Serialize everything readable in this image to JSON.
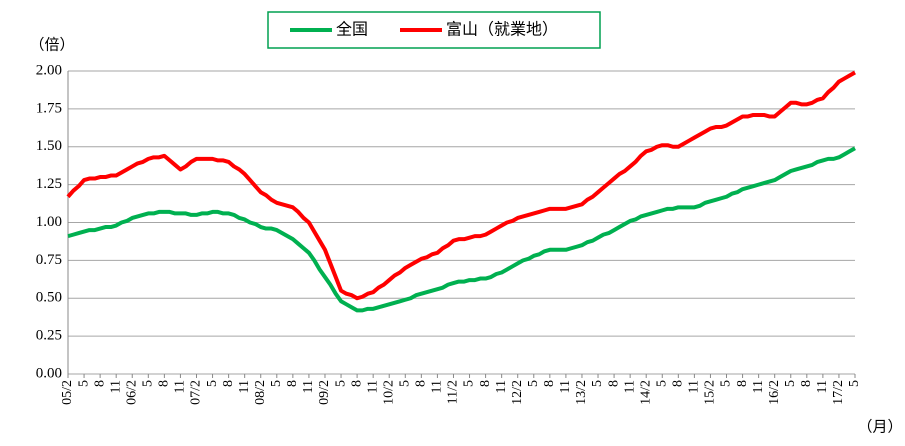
{
  "chart_data": {
    "type": "line",
    "y_unit": "（倍）",
    "x_unit": "（月）",
    "categories": [
      "05/2",
      null,
      null,
      "5",
      null,
      null,
      "8",
      null,
      null,
      "11",
      null,
      null,
      "06/2",
      null,
      null,
      "5",
      null,
      null,
      "8",
      null,
      null,
      "11",
      null,
      null,
      "07/2",
      null,
      null,
      "5",
      null,
      null,
      "8",
      null,
      null,
      "11",
      null,
      null,
      "08/2",
      null,
      null,
      "5",
      null,
      null,
      "8",
      null,
      null,
      "11",
      null,
      null,
      "09/2",
      null,
      null,
      "5",
      null,
      null,
      "8",
      null,
      null,
      "11",
      null,
      null,
      "10/2",
      null,
      null,
      "5",
      null,
      null,
      "8",
      null,
      null,
      "11",
      null,
      null,
      "11/2",
      null,
      null,
      "5",
      null,
      null,
      "8",
      null,
      null,
      "11",
      null,
      null,
      "12/2",
      null,
      null,
      "5",
      null,
      null,
      "8",
      null,
      null,
      "11",
      null,
      null,
      "13/2",
      null,
      null,
      "5",
      null,
      null,
      "8",
      null,
      null,
      "11",
      null,
      null,
      "14/2",
      null,
      null,
      "5",
      null,
      null,
      "8",
      null,
      null,
      "11",
      null,
      null,
      "15/2",
      null,
      null,
      "5",
      null,
      null,
      "8",
      null,
      null,
      "11",
      null,
      null,
      "16/2",
      null,
      null,
      "5",
      null,
      null,
      "8",
      null,
      null,
      "11",
      null,
      null,
      "17/2",
      null,
      null,
      "5"
    ],
    "series": [
      {
        "name": "全国",
        "color": "#00b050",
        "values": [
          0.91,
          0.92,
          0.93,
          0.94,
          0.95,
          0.95,
          0.96,
          0.97,
          0.97,
          0.98,
          1.0,
          1.01,
          1.03,
          1.04,
          1.05,
          1.06,
          1.06,
          1.07,
          1.07,
          1.07,
          1.06,
          1.06,
          1.06,
          1.05,
          1.05,
          1.06,
          1.06,
          1.07,
          1.07,
          1.06,
          1.06,
          1.05,
          1.03,
          1.02,
          1.0,
          0.99,
          0.97,
          0.96,
          0.96,
          0.95,
          0.93,
          0.91,
          0.89,
          0.86,
          0.83,
          0.8,
          0.75,
          0.69,
          0.64,
          0.59,
          0.53,
          0.48,
          0.46,
          0.44,
          0.42,
          0.42,
          0.43,
          0.43,
          0.44,
          0.45,
          0.46,
          0.47,
          0.48,
          0.49,
          0.5,
          0.52,
          0.53,
          0.54,
          0.55,
          0.56,
          0.57,
          0.59,
          0.6,
          0.61,
          0.61,
          0.62,
          0.62,
          0.63,
          0.63,
          0.64,
          0.66,
          0.67,
          0.69,
          0.71,
          0.73,
          0.75,
          0.76,
          0.78,
          0.79,
          0.81,
          0.82,
          0.82,
          0.82,
          0.82,
          0.83,
          0.84,
          0.85,
          0.87,
          0.88,
          0.9,
          0.92,
          0.93,
          0.95,
          0.97,
          0.99,
          1.01,
          1.02,
          1.04,
          1.05,
          1.06,
          1.07,
          1.08,
          1.09,
          1.09,
          1.1,
          1.1,
          1.1,
          1.1,
          1.11,
          1.13,
          1.14,
          1.15,
          1.16,
          1.17,
          1.19,
          1.2,
          1.22,
          1.23,
          1.24,
          1.25,
          1.26,
          1.27,
          1.28,
          1.3,
          1.32,
          1.34,
          1.35,
          1.36,
          1.37,
          1.38,
          1.4,
          1.41,
          1.42,
          1.42,
          1.43,
          1.45,
          1.47,
          1.49
        ]
      },
      {
        "name": "富山（就業地）",
        "color": "#ff0000",
        "values": [
          1.17,
          1.21,
          1.24,
          1.28,
          1.29,
          1.29,
          1.3,
          1.3,
          1.31,
          1.31,
          1.33,
          1.35,
          1.37,
          1.39,
          1.4,
          1.42,
          1.43,
          1.43,
          1.44,
          1.41,
          1.38,
          1.35,
          1.37,
          1.4,
          1.42,
          1.42,
          1.42,
          1.42,
          1.41,
          1.41,
          1.4,
          1.37,
          1.35,
          1.32,
          1.28,
          1.24,
          1.2,
          1.18,
          1.15,
          1.13,
          1.12,
          1.11,
          1.1,
          1.07,
          1.03,
          1.0,
          0.94,
          0.88,
          0.82,
          0.73,
          0.64,
          0.55,
          0.53,
          0.52,
          0.5,
          0.51,
          0.53,
          0.54,
          0.57,
          0.59,
          0.62,
          0.65,
          0.67,
          0.7,
          0.72,
          0.74,
          0.76,
          0.77,
          0.79,
          0.8,
          0.83,
          0.85,
          0.88,
          0.89,
          0.89,
          0.9,
          0.91,
          0.91,
          0.92,
          0.94,
          0.96,
          0.98,
          1.0,
          1.01,
          1.03,
          1.04,
          1.05,
          1.06,
          1.07,
          1.08,
          1.09,
          1.09,
          1.09,
          1.09,
          1.1,
          1.11,
          1.12,
          1.15,
          1.17,
          1.2,
          1.23,
          1.26,
          1.29,
          1.32,
          1.34,
          1.37,
          1.4,
          1.44,
          1.47,
          1.48,
          1.5,
          1.51,
          1.51,
          1.5,
          1.5,
          1.52,
          1.54,
          1.56,
          1.58,
          1.6,
          1.62,
          1.63,
          1.63,
          1.64,
          1.66,
          1.68,
          1.7,
          1.7,
          1.71,
          1.71,
          1.71,
          1.7,
          1.7,
          1.73,
          1.76,
          1.79,
          1.79,
          1.78,
          1.78,
          1.79,
          1.81,
          1.82,
          1.86,
          1.89,
          1.93,
          1.95,
          1.97,
          1.99
        ]
      }
    ],
    "ylim": [
      0,
      2
    ],
    "yticks": [
      {
        "value": 0,
        "label": "0.00"
      },
      0.25,
      {
        "value": 0.5,
        "label": "0.50"
      },
      0.75,
      {
        "value": 1,
        "label": "1.00"
      },
      1.25,
      {
        "value": 1.5,
        "label": "1.50"
      },
      1.75,
      {
        "value": 2,
        "label": "2.00"
      }
    ],
    "grid": true
  }
}
